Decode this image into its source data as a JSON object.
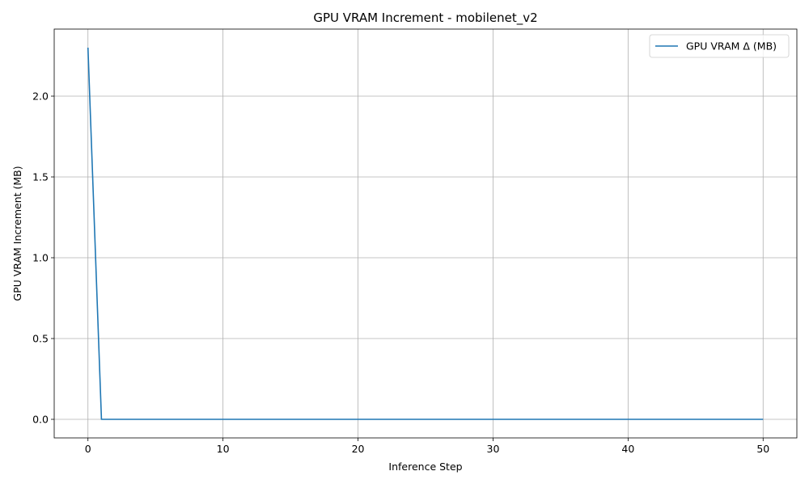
{
  "chart_data": {
    "type": "line",
    "title": "GPU VRAM Increment - mobilenet_v2",
    "xlabel": "Inference Step",
    "ylabel": "GPU VRAM Increment (MB)",
    "xlim": [
      -2.5,
      52.5
    ],
    "ylim": [
      -0.115,
      2.415
    ],
    "xticks": [
      0,
      10,
      20,
      30,
      40,
      50
    ],
    "xtick_labels": [
      "0",
      "10",
      "20",
      "30",
      "40",
      "50"
    ],
    "yticks": [
      0.0,
      0.5,
      1.0,
      1.5,
      2.0
    ],
    "ytick_labels": [
      "0.0",
      "0.5",
      "1.0",
      "1.5",
      "2.0"
    ],
    "grid": true,
    "legend_position": "top-right",
    "series": [
      {
        "name": "GPU VRAM Δ (MB)",
        "color": "#1f77b4",
        "x": [
          0,
          1,
          2,
          3,
          4,
          5,
          6,
          7,
          8,
          9,
          10,
          11,
          12,
          13,
          14,
          15,
          16,
          17,
          18,
          19,
          20,
          21,
          22,
          23,
          24,
          25,
          26,
          27,
          28,
          29,
          30,
          31,
          32,
          33,
          34,
          35,
          36,
          37,
          38,
          39,
          40,
          41,
          42,
          43,
          44,
          45,
          46,
          47,
          48,
          49,
          50
        ],
        "y": [
          2.3,
          0,
          0,
          0,
          0,
          0,
          0,
          0,
          0,
          0,
          0,
          0,
          0,
          0,
          0,
          0,
          0,
          0,
          0,
          0,
          0,
          0,
          0,
          0,
          0,
          0,
          0,
          0,
          0,
          0,
          0,
          0,
          0,
          0,
          0,
          0,
          0,
          0,
          0,
          0,
          0,
          0,
          0,
          0,
          0,
          0,
          0,
          0,
          0,
          0,
          0
        ]
      }
    ]
  }
}
